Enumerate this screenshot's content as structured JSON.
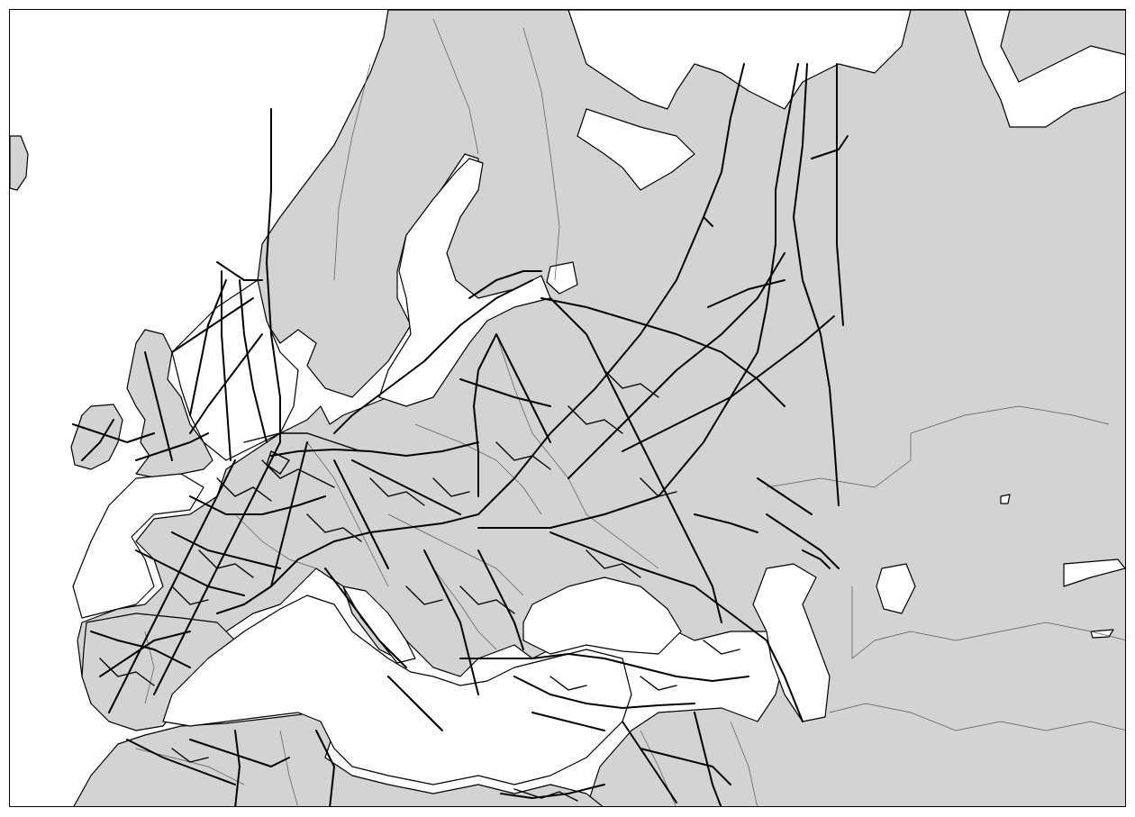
{
  "map": {
    "style": {
      "land_fill": "#d3d3d3",
      "sea_fill": "#ffffff",
      "coastline_color": "#000000",
      "border_color": "#555555",
      "network_color": "#000000"
    }
  }
}
